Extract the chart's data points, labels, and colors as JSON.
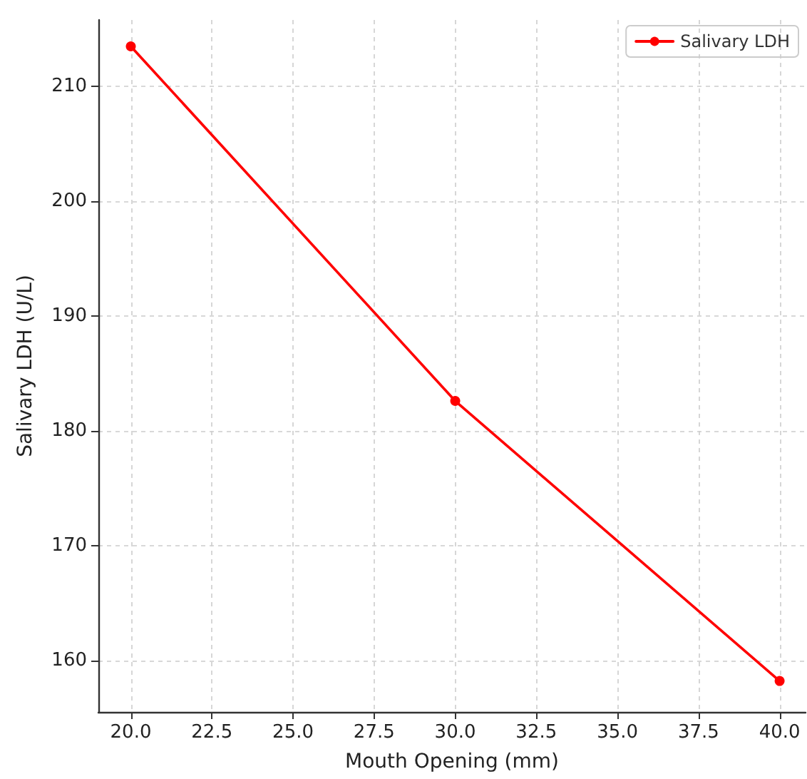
{
  "chart_data": {
    "type": "line",
    "xlabel": "Mouth Opening (mm)",
    "ylabel": "Salivary LDH (U/L)",
    "x": [
      20,
      30,
      40
    ],
    "series": [
      {
        "name": "Salivary LDH",
        "color": "#ff0000",
        "values": [
          213.5,
          182.6,
          158.2
        ]
      }
    ],
    "xlim": [
      19,
      40.8
    ],
    "ylim": [
      155.5,
      215.8
    ],
    "xticks": [
      {
        "value": 20,
        "label": "20.0"
      },
      {
        "value": 22.5,
        "label": "22.5"
      },
      {
        "value": 25,
        "label": "25.0"
      },
      {
        "value": 27.5,
        "label": "27.5"
      },
      {
        "value": 30,
        "label": "30.0"
      },
      {
        "value": 32.5,
        "label": "32.5"
      },
      {
        "value": 35,
        "label": "35.0"
      },
      {
        "value": 37.5,
        "label": "37.5"
      },
      {
        "value": 40,
        "label": "40.0"
      }
    ],
    "yticks": [
      160,
      170,
      180,
      190,
      200,
      210
    ],
    "grid": true,
    "legend": "top right",
    "marker": "circle",
    "line_style": "solid"
  }
}
